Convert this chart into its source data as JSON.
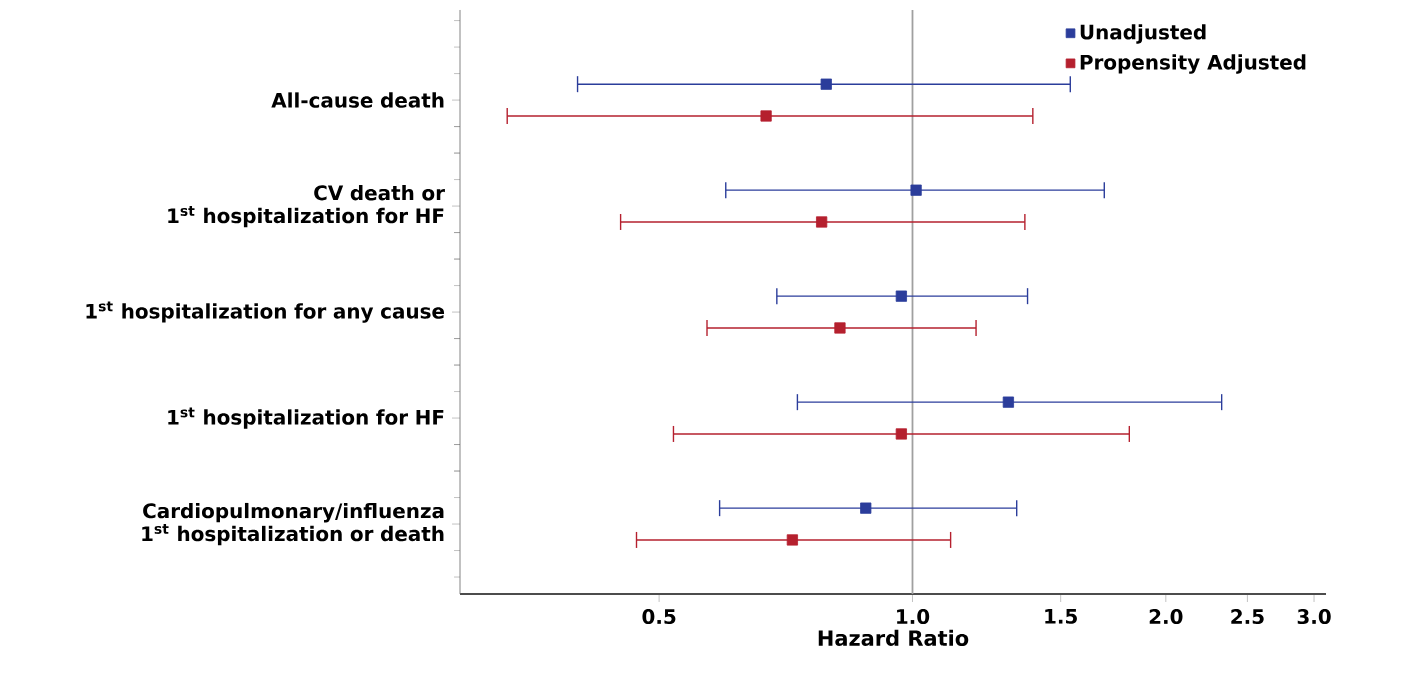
{
  "chart_data": {
    "type": "scatter",
    "categories": [
      "All-cause death",
      "CV death or\n1$^{st}$ hospitalization for HF",
      "1$^{st}$ hospitalization for any cause",
      "1$^{st}$ hospitalization for HF",
      "Cardiopulmonary/influenza\n1$^{st}$ hospitalization or death"
    ],
    "orientation": "horizontal",
    "xlabel": "Hazard Ratio",
    "log": "x",
    "xlim": [
      0.29,
      3.1
    ],
    "xticks": [
      0.5,
      {
        "value": 1,
        "label": "1.0"
      },
      1.5,
      {
        "value": 2,
        "label": "2.0"
      },
      2.5,
      {
        "value": 3,
        "label": "3.0"
      }
    ],
    "series": [
      {
        "name": "Unadjusted",
        "color": "#2b3d9b",
        "values": [
          0.79,
          1.01,
          0.97,
          1.3,
          0.88
        ],
        "errors": [
          [
            0.4,
            1.54
          ],
          [
            0.6,
            1.69
          ],
          [
            0.69,
            1.37
          ],
          [
            0.73,
            2.33
          ],
          [
            0.59,
            1.33
          ]
        ]
      },
      {
        "name": "Propensity Adjusted",
        "color": "#b5202e",
        "values": [
          0.67,
          0.78,
          0.82,
          0.97,
          0.72
        ],
        "errors": [
          [
            0.33,
            1.39
          ],
          [
            0.45,
            1.36
          ],
          [
            0.57,
            1.19
          ],
          [
            0.52,
            1.81
          ],
          [
            0.47,
            1.11
          ]
        ]
      }
    ],
    "ref_lines": [
      {
        "axis": "x",
        "value": 1,
        "color": "#a0a0a0"
      }
    ],
    "marker": "square",
    "legend": "top right",
    "grid": false
  }
}
